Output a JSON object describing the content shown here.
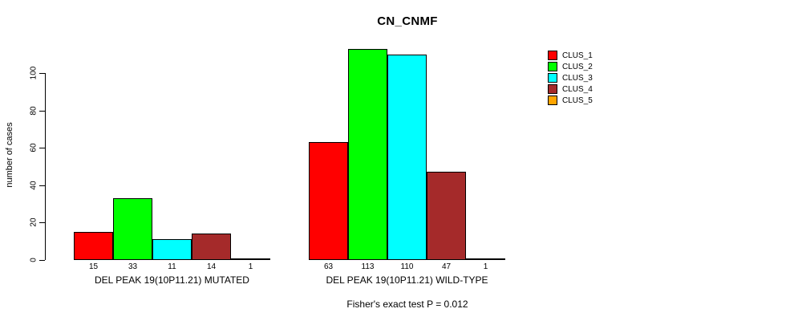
{
  "chart_data": {
    "type": "bar",
    "title": "CN_CNMF",
    "ylabel": "number of cases",
    "xlabel": "",
    "ylim": [
      0,
      100
    ],
    "yticks": [
      0,
      20,
      40,
      60,
      80,
      100
    ],
    "grid": false,
    "legend_position": "top-right",
    "categories": [
      "DEL PEAK 19(10P11.21) MUTATED",
      "DEL PEAK 19(10P11.21) WILD-TYPE"
    ],
    "series": [
      {
        "name": "CLUS_1",
        "color": "#FF0000",
        "values": [
          15,
          63
        ]
      },
      {
        "name": "CLUS_2",
        "color": "#00FF00",
        "values": [
          33,
          113
        ]
      },
      {
        "name": "CLUS_3",
        "color": "#00FFFF",
        "values": [
          11,
          110
        ]
      },
      {
        "name": "CLUS_4",
        "color": "#A52A2A",
        "values": [
          14,
          47
        ]
      },
      {
        "name": "CLUS_5",
        "color": "#FFA500",
        "values": [
          1,
          1
        ]
      }
    ],
    "bar_value_labels": true,
    "annotation": "Fisher's exact test P = 0.012"
  }
}
